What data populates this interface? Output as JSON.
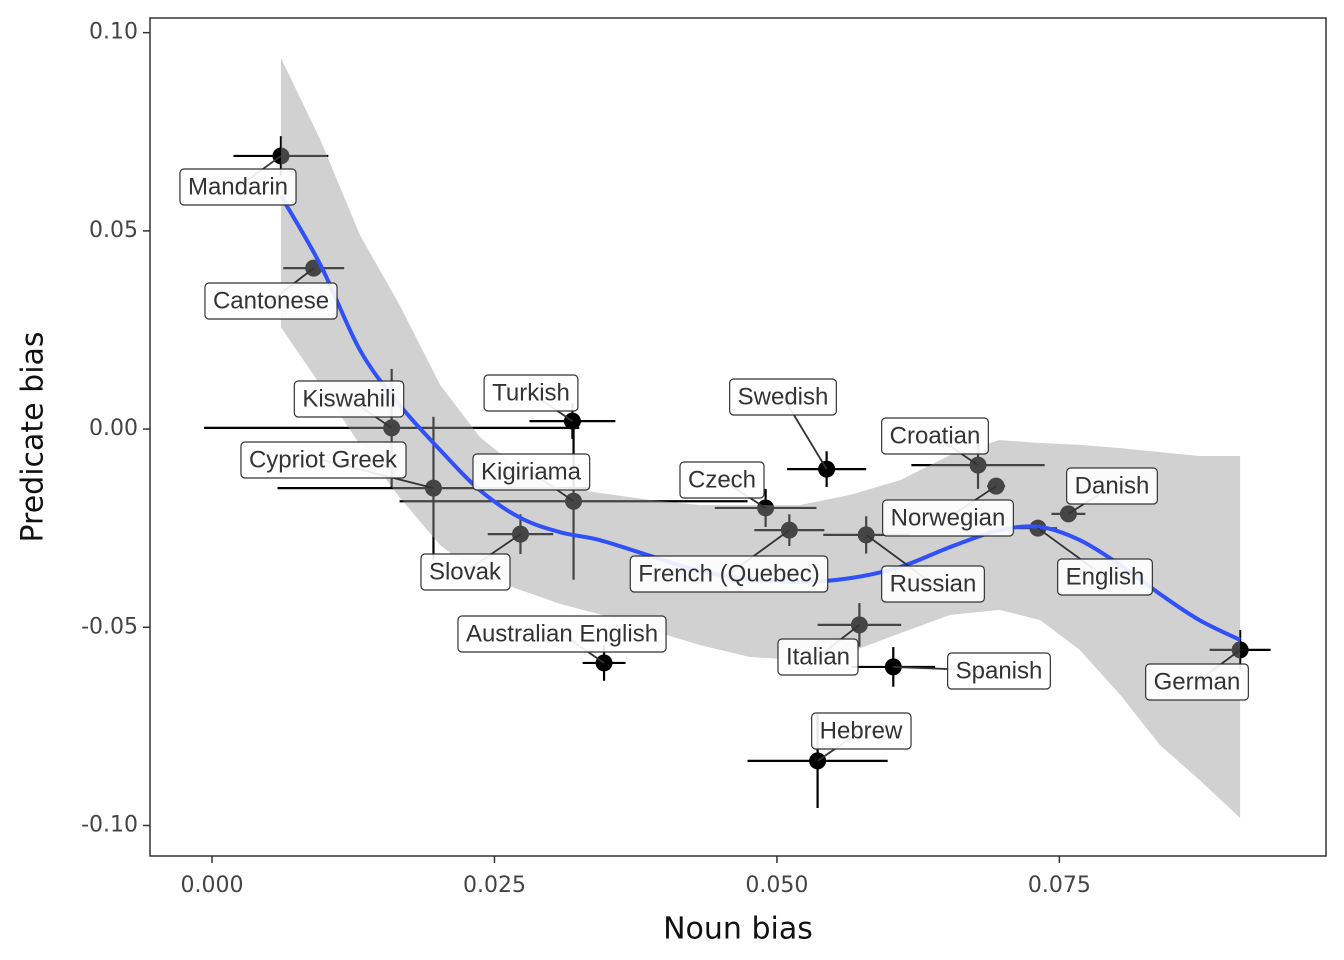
{
  "chart_data": {
    "type": "scatter",
    "x_label": "Noun bias",
    "y_label": "Predicate bias",
    "xlim": [
      -0.00549,
      0.0986
    ],
    "ylim": [
      -0.1077,
      0.1037
    ],
    "xticks": [
      {
        "value": 0,
        "label": "0.000"
      },
      {
        "value": 0.025,
        "label": "0.025"
      },
      {
        "value": 0.05,
        "label": "0.050"
      },
      {
        "value": 0.075,
        "label": "0.075"
      }
    ],
    "yticks": [
      {
        "value": 0.1,
        "label": "0.10"
      },
      {
        "value": 0.05,
        "label": "0.05"
      },
      {
        "value": 0,
        "label": "0.00"
      },
      {
        "value": -0.05,
        "label": "-0.05"
      },
      {
        "value": -0.1,
        "label": "-0.10"
      }
    ],
    "point_color": "#000000",
    "line_color": "#3050f8",
    "ribbon_color": "#999999",
    "points": [
      {
        "label": "Mandarin",
        "x": 0.0061,
        "y": 0.0689,
        "x_err": 0.0042,
        "y_err": 0.005
      },
      {
        "label": "Cantonese",
        "x": 0.009,
        "y": 0.0406,
        "x_err": 0.0027,
        "y_err": 0.002
      },
      {
        "label": "Kiswahili",
        "x": 0.0159,
        "y": 0.0003,
        "x_err": 0.0166,
        "y_err": 0.0149
      },
      {
        "label": "Cypriot Greek",
        "x": 0.0196,
        "y": -0.0149,
        "x_err": 0.0138,
        "y_err": 0.018
      },
      {
        "label": "Turkish",
        "x": 0.0319,
        "y": 0.002,
        "x_err": 0.0038,
        "y_err": 0.0045
      },
      {
        "label": "Kigiriama",
        "x": 0.032,
        "y": -0.0182,
        "x_err": 0.0154,
        "y_err": 0.0198
      },
      {
        "label": "Slovak",
        "x": 0.0273,
        "y": -0.0265,
        "x_err": 0.0029,
        "y_err": 0.005
      },
      {
        "label": "Czech",
        "x": 0.049,
        "y": -0.0199,
        "x_err": 0.0045,
        "y_err": 0.0048
      },
      {
        "label": "French (Quebec)",
        "x": 0.0511,
        "y": -0.0255,
        "x_err": 0.0031,
        "y_err": 0.004
      },
      {
        "label": "Swedish",
        "x": 0.0544,
        "y": -0.0101,
        "x_err": 0.0035,
        "y_err": 0.0045
      },
      {
        "label": "Russian",
        "x": 0.0579,
        "y": -0.0267,
        "x_err": 0.0038,
        "y_err": 0.0047
      },
      {
        "label": "Italian",
        "x": 0.0573,
        "y": -0.0494,
        "x_err": 0.0037,
        "y_err": 0.0055
      },
      {
        "label": "Spanish",
        "x": 0.0603,
        "y": -0.06,
        "x_err": 0.0037,
        "y_err": 0.005
      },
      {
        "label": "Hebrew",
        "x": 0.0536,
        "y": -0.0837,
        "x_err": 0.0062,
        "y_err": 0.0119
      },
      {
        "label": "Australian English",
        "x": 0.0347,
        "y": -0.059,
        "x_err": 0.0019,
        "y_err": 0.0045
      },
      {
        "label": "Croatian",
        "x": 0.0678,
        "y": -0.0091,
        "x_err": 0.0059,
        "y_err": 0.006
      },
      {
        "label": "Norwegian",
        "x": 0.0694,
        "y": -0.0144,
        "x_err": 0.0008,
        "y_err": 0.002
      },
      {
        "label": "English",
        "x": 0.0731,
        "y": -0.025,
        "x_err": 0.0017,
        "y_err": 0.0015
      },
      {
        "label": "Danish",
        "x": 0.0758,
        "y": -0.0214,
        "x_err": 0.0015,
        "y_err": 0.0015
      },
      {
        "label": "German",
        "x": 0.091,
        "y": -0.0557,
        "x_err": 0.0027,
        "y_err": 0.005
      }
    ],
    "fit": {
      "x": [
        0.0061,
        0.0096,
        0.0131,
        0.0166,
        0.0202,
        0.0237,
        0.0273,
        0.0308,
        0.0343,
        0.0388,
        0.0432,
        0.0476,
        0.052,
        0.0565,
        0.0609,
        0.0653,
        0.0697,
        0.0733,
        0.0768,
        0.0804,
        0.0839,
        0.0874,
        0.091
      ],
      "y": [
        0.0588,
        0.0414,
        0.0199,
        0.0061,
        -0.0053,
        -0.0154,
        -0.0224,
        -0.026,
        -0.028,
        -0.032,
        -0.0358,
        -0.0378,
        -0.0386,
        -0.0376,
        -0.0348,
        -0.0298,
        -0.0255,
        -0.0247,
        -0.028,
        -0.0343,
        -0.0416,
        -0.0482,
        -0.0532
      ],
      "upper": [
        0.0936,
        0.0729,
        0.0489,
        0.0313,
        0.0111,
        -0.002,
        -0.0103,
        -0.0146,
        -0.0161,
        -0.0179,
        -0.0192,
        -0.0192,
        -0.0192,
        -0.0166,
        -0.0129,
        -0.0066,
        -0.0028,
        -0.0035,
        -0.004,
        -0.0048,
        -0.0058,
        -0.0068,
        -0.0068
      ],
      "lower": [
        0.0257,
        0.0111,
        -0.004,
        -0.0172,
        -0.0293,
        -0.0368,
        -0.0406,
        -0.0441,
        -0.0467,
        -0.0507,
        -0.0545,
        -0.0575,
        -0.0583,
        -0.0562,
        -0.0515,
        -0.0469,
        -0.0456,
        -0.0482,
        -0.0557,
        -0.0671,
        -0.0797,
        -0.0885,
        -0.0981
      ]
    }
  }
}
